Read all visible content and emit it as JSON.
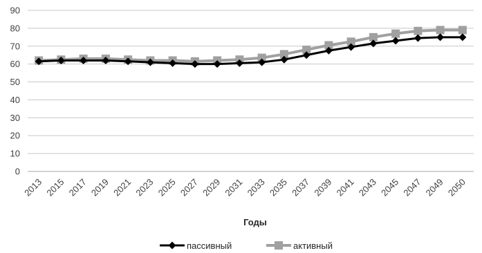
{
  "chart_data": {
    "type": "line",
    "title": "",
    "xlabel": "Годы",
    "ylabel": "",
    "ylim": [
      0,
      90
    ],
    "yticks": [
      0,
      10,
      20,
      30,
      40,
      50,
      60,
      70,
      80,
      90
    ],
    "x": [
      "2013",
      "2015",
      "2017",
      "2019",
      "2021",
      "2023",
      "2025",
      "2027",
      "2029",
      "2031",
      "2033",
      "2035",
      "2037",
      "2039",
      "2041",
      "2043",
      "2045",
      "2047",
      "2049",
      "2050"
    ],
    "grid": true,
    "legend_position": "bottom",
    "series": [
      {
        "name": "пассивный",
        "color": "#000000",
        "marker": "diamond",
        "values": [
          61.5,
          62,
          62,
          62,
          61.5,
          61,
          60.5,
          60,
          60,
          60.5,
          61,
          62.5,
          65,
          67.5,
          69.5,
          71.5,
          73,
          74.5,
          75,
          75
        ]
      },
      {
        "name": "активный",
        "color": "#a0a0a0",
        "marker": "square",
        "values": [
          62,
          62.5,
          63,
          63,
          62.5,
          62,
          62,
          61.5,
          62,
          62.5,
          63.5,
          65.5,
          68,
          70.5,
          72.5,
          75,
          77,
          78.5,
          79,
          79
        ]
      }
    ]
  }
}
